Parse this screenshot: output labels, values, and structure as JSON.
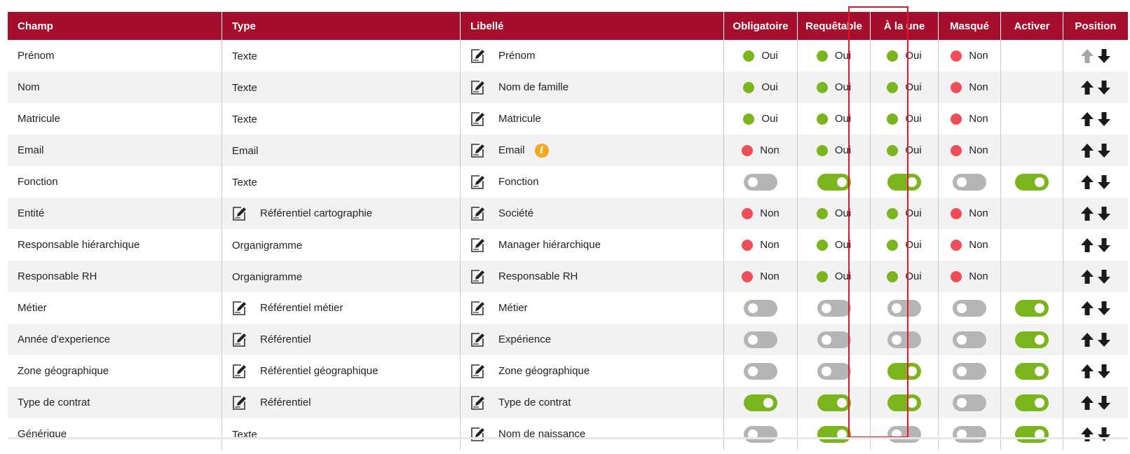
{
  "colors": {
    "header_bg": "#a50e2d",
    "green": "#7ab51d",
    "red": "#ef4d57",
    "toggle_off": "#b5b5b5",
    "highlight": "#e0182d",
    "arrow": "#1a1a1a",
    "arrow_disabled": "#a6a6a6",
    "info": "#f4a81b"
  },
  "headers": {
    "champ": "Champ",
    "type": "Type",
    "libelle": "Libellé",
    "obligatoire": "Obligatoire",
    "requetable": "Requêtable",
    "a_la_une": "À la une",
    "masque": "Masqué",
    "activer": "Activer",
    "position": "Position"
  },
  "rows": [
    {
      "champ": "Prénom",
      "type": "Texte",
      "type_editable": false,
      "libelle": "Prénom",
      "info": false,
      "obligatoire": {
        "kind": "status",
        "value": "Oui"
      },
      "requetable": {
        "kind": "status",
        "value": "Oui"
      },
      "a_la_une": {
        "kind": "status",
        "value": "Oui"
      },
      "masque": {
        "kind": "status",
        "value": "Non"
      },
      "activer": null,
      "up_enabled": false,
      "down_enabled": true
    },
    {
      "champ": "Nom",
      "type": "Texte",
      "type_editable": false,
      "libelle": "Nom de famille",
      "info": false,
      "obligatoire": {
        "kind": "status",
        "value": "Oui"
      },
      "requetable": {
        "kind": "status",
        "value": "Oui"
      },
      "a_la_une": {
        "kind": "status",
        "value": "Oui"
      },
      "masque": {
        "kind": "status",
        "value": "Non"
      },
      "activer": null,
      "up_enabled": true,
      "down_enabled": true
    },
    {
      "champ": "Matricule",
      "type": "Texte",
      "type_editable": false,
      "libelle": "Matricule",
      "info": false,
      "obligatoire": {
        "kind": "status",
        "value": "Oui"
      },
      "requetable": {
        "kind": "status",
        "value": "Oui"
      },
      "a_la_une": {
        "kind": "status",
        "value": "Oui"
      },
      "masque": {
        "kind": "status",
        "value": "Non"
      },
      "activer": null,
      "up_enabled": true,
      "down_enabled": true
    },
    {
      "champ": "Email",
      "type": "Email",
      "type_editable": false,
      "libelle": "Email",
      "info": true,
      "obligatoire": {
        "kind": "status",
        "value": "Non"
      },
      "requetable": {
        "kind": "status",
        "value": "Oui"
      },
      "a_la_une": {
        "kind": "status",
        "value": "Oui"
      },
      "masque": {
        "kind": "status",
        "value": "Non"
      },
      "activer": null,
      "up_enabled": true,
      "down_enabled": true
    },
    {
      "champ": "Fonction",
      "type": "Texte",
      "type_editable": false,
      "libelle": "Fonction",
      "info": false,
      "obligatoire": {
        "kind": "toggle",
        "on": false
      },
      "requetable": {
        "kind": "toggle",
        "on": true
      },
      "a_la_une": {
        "kind": "toggle",
        "on": true
      },
      "masque": {
        "kind": "toggle",
        "on": false
      },
      "activer": {
        "kind": "toggle",
        "on": true
      },
      "up_enabled": true,
      "down_enabled": true
    },
    {
      "champ": "Entité",
      "type": "Référentiel cartographie",
      "type_editable": true,
      "libelle": "Société",
      "info": false,
      "obligatoire": {
        "kind": "status",
        "value": "Non"
      },
      "requetable": {
        "kind": "status",
        "value": "Oui"
      },
      "a_la_une": {
        "kind": "status",
        "value": "Oui"
      },
      "masque": {
        "kind": "status",
        "value": "Non"
      },
      "activer": null,
      "up_enabled": true,
      "down_enabled": true
    },
    {
      "champ": "Responsable hiérarchique",
      "type": "Organigramme",
      "type_editable": false,
      "libelle": "Manager hiérarchique",
      "info": false,
      "obligatoire": {
        "kind": "status",
        "value": "Non"
      },
      "requetable": {
        "kind": "status",
        "value": "Oui"
      },
      "a_la_une": {
        "kind": "status",
        "value": "Oui"
      },
      "masque": {
        "kind": "status",
        "value": "Non"
      },
      "activer": null,
      "up_enabled": true,
      "down_enabled": true
    },
    {
      "champ": "Responsable RH",
      "type": "Organigramme",
      "type_editable": false,
      "libelle": "Responsable RH",
      "info": false,
      "obligatoire": {
        "kind": "status",
        "value": "Non"
      },
      "requetable": {
        "kind": "status",
        "value": "Oui"
      },
      "a_la_une": {
        "kind": "status",
        "value": "Oui"
      },
      "masque": {
        "kind": "status",
        "value": "Non"
      },
      "activer": null,
      "up_enabled": true,
      "down_enabled": true
    },
    {
      "champ": "Métier",
      "type": "Référentiel métier",
      "type_editable": true,
      "libelle": "Métier",
      "info": false,
      "obligatoire": {
        "kind": "toggle",
        "on": false
      },
      "requetable": {
        "kind": "toggle",
        "on": false
      },
      "a_la_une": {
        "kind": "toggle",
        "on": false
      },
      "masque": {
        "kind": "toggle",
        "on": false
      },
      "activer": {
        "kind": "toggle",
        "on": true
      },
      "up_enabled": true,
      "down_enabled": true
    },
    {
      "champ": "Année d'experience",
      "type": "Référentiel",
      "type_editable": true,
      "libelle": "Expérience",
      "info": false,
      "obligatoire": {
        "kind": "toggle",
        "on": false
      },
      "requetable": {
        "kind": "toggle",
        "on": false
      },
      "a_la_une": {
        "kind": "toggle",
        "on": false
      },
      "masque": {
        "kind": "toggle",
        "on": false
      },
      "activer": {
        "kind": "toggle",
        "on": true
      },
      "up_enabled": true,
      "down_enabled": true
    },
    {
      "champ": "Zone géographique",
      "type": "Référentiel géographique",
      "type_editable": true,
      "libelle": "Zone géographique",
      "info": false,
      "obligatoire": {
        "kind": "toggle",
        "on": false
      },
      "requetable": {
        "kind": "toggle",
        "on": false
      },
      "a_la_une": {
        "kind": "toggle",
        "on": true
      },
      "masque": {
        "kind": "toggle",
        "on": false
      },
      "activer": {
        "kind": "toggle",
        "on": true
      },
      "up_enabled": true,
      "down_enabled": true
    },
    {
      "champ": "Type de contrat",
      "type": "Référentiel",
      "type_editable": true,
      "libelle": "Type de contrat",
      "info": false,
      "obligatoire": {
        "kind": "toggle",
        "on": true
      },
      "requetable": {
        "kind": "toggle",
        "on": true
      },
      "a_la_une": {
        "kind": "toggle",
        "on": true
      },
      "masque": {
        "kind": "toggle",
        "on": false
      },
      "activer": {
        "kind": "toggle",
        "on": true
      },
      "up_enabled": true,
      "down_enabled": true
    },
    {
      "champ": "Générique",
      "type": "Texte",
      "type_editable": false,
      "libelle": "Nom de naissance",
      "info": false,
      "obligatoire": {
        "kind": "toggle",
        "on": false
      },
      "requetable": {
        "kind": "toggle",
        "on": true
      },
      "a_la_une": {
        "kind": "toggle",
        "on": false
      },
      "masque": {
        "kind": "toggle",
        "on": false
      },
      "activer": {
        "kind": "toggle",
        "on": true
      },
      "up_enabled": true,
      "down_enabled": true
    }
  ]
}
